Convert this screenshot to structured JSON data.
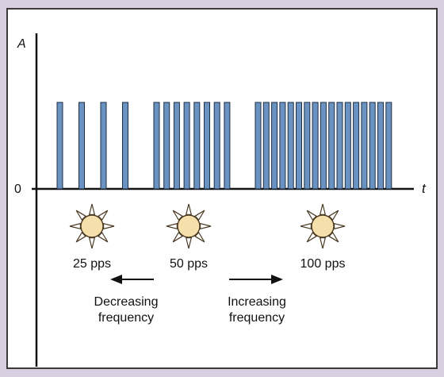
{
  "diagram": {
    "y_axis_label": "A",
    "x_axis_label": "t",
    "zero_label": "0",
    "colors": {
      "background": "#d9cfe0",
      "panel": "#ffffff",
      "pulse_fill": "#6a93c2",
      "pulse_stroke": "#1e2f44",
      "sun_fill": "#f5dfaa",
      "sun_stroke": "#4a3a24",
      "axis": "#111111"
    },
    "pulse_groups": [
      {
        "label": "25 pps",
        "count": 4
      },
      {
        "label": "50 pps",
        "count": 8
      },
      {
        "label": "100 pps",
        "count": 17
      }
    ],
    "arrows": [
      {
        "direction": "left",
        "line1": "Decreasing",
        "line2": "frequency"
      },
      {
        "direction": "right",
        "line1": "Increasing",
        "line2": "frequency"
      }
    ],
    "icons": [
      "sun-icon",
      "sun-icon",
      "sun-icon"
    ]
  }
}
